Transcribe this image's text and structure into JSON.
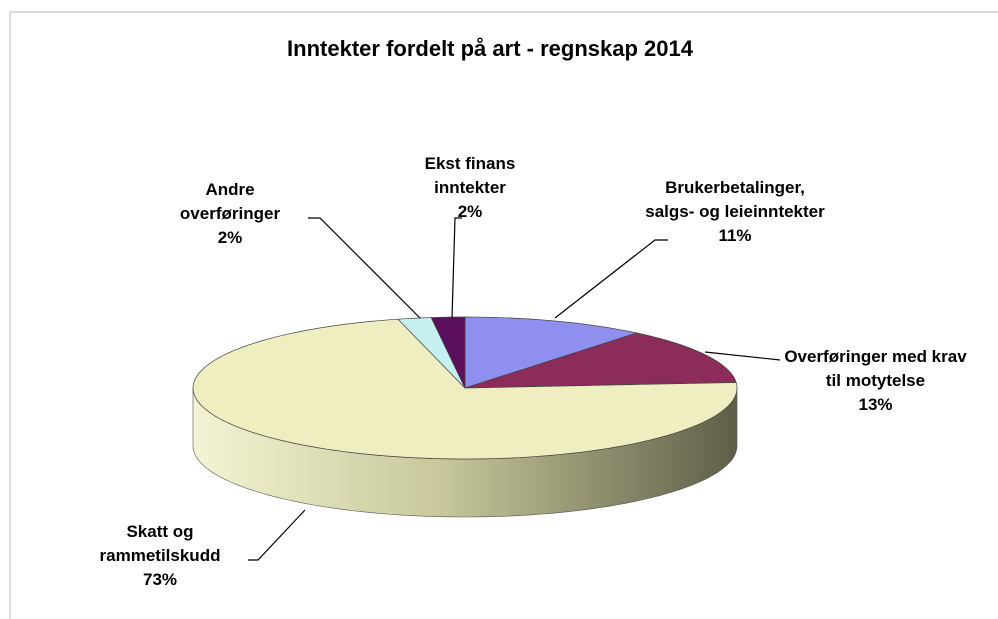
{
  "chart_data": {
    "type": "pie3d",
    "title": "Inntekter fordelt på art - regnskap 2014",
    "categories": [
      "Brukerbetalinger, salgs- og leieinntekter",
      "Overføringer med krav til motytelse",
      "Skatt og rammetilskudd",
      "Andre overføringer",
      "Ekst finans inntekter"
    ],
    "values": [
      11,
      13,
      73,
      2,
      2
    ],
    "value_labels": [
      "11%",
      "13%",
      "73%",
      "2%",
      "2%"
    ],
    "colors": [
      "#8f8fef",
      "#8b2c5a",
      "#eeeec0",
      "#c6f0f0",
      "#5c0f5c"
    ]
  }
}
